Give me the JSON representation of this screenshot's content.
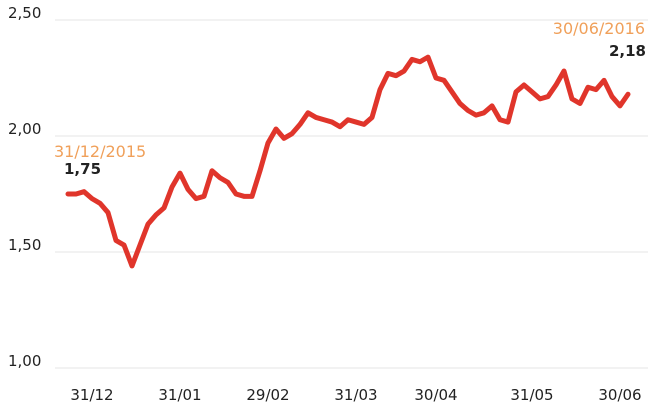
{
  "chart_data": {
    "type": "line",
    "categories": [
      null,
      null,
      null,
      "31/12",
      null,
      null,
      null,
      null,
      null,
      null,
      null,
      null,
      null,
      null,
      "31/01",
      null,
      null,
      null,
      null,
      null,
      null,
      null,
      null,
      null,
      null,
      "29/02",
      null,
      null,
      null,
      null,
      null,
      null,
      null,
      null,
      null,
      null,
      "31/03",
      null,
      null,
      null,
      null,
      null,
      null,
      null,
      null,
      null,
      "30/04",
      null,
      null,
      null,
      null,
      null,
      null,
      null,
      null,
      null,
      null,
      null,
      "31/05",
      null,
      null,
      null,
      null,
      null,
      null,
      null,
      null,
      null,
      null,
      "30/06",
      null
    ],
    "series": [
      {
        "color": "#e0352b",
        "values": [
          1.75,
          1.75,
          1.76,
          1.73,
          1.71,
          1.67,
          1.55,
          1.53,
          1.44,
          1.53,
          1.62,
          1.66,
          1.69,
          1.78,
          1.84,
          1.77,
          1.73,
          1.74,
          1.85,
          1.82,
          1.8,
          1.75,
          1.74,
          1.74,
          1.85,
          1.97,
          2.03,
          1.99,
          2.01,
          2.05,
          2.1,
          2.08,
          2.07,
          2.06,
          2.04,
          2.07,
          2.06,
          2.05,
          2.08,
          2.2,
          2.27,
          2.26,
          2.28,
          2.33,
          2.32,
          2.34,
          2.25,
          2.24,
          2.19,
          2.14,
          2.11,
          2.09,
          2.1,
          2.13,
          2.07,
          2.06,
          2.19,
          2.22,
          2.19,
          2.16,
          2.17,
          2.22,
          2.28,
          2.16,
          2.14,
          2.21,
          2.2,
          2.24,
          2.17,
          2.13,
          2.18
        ],
        "value_labels": [
          "1,75",
          null,
          null,
          null,
          null,
          null,
          null,
          null,
          null,
          null,
          null,
          null,
          null,
          null,
          null,
          null,
          null,
          null,
          null,
          null,
          null,
          null,
          null,
          null,
          null,
          null,
          null,
          null,
          null,
          null,
          null,
          null,
          null,
          null,
          null,
          null,
          null,
          null,
          null,
          null,
          null,
          null,
          null,
          null,
          null,
          null,
          null,
          null,
          null,
          null,
          null,
          null,
          null,
          null,
          null,
          null,
          null,
          null,
          null,
          null,
          null,
          null,
          null,
          null,
          null,
          null,
          null,
          null,
          null,
          null,
          "2,18"
        ]
      }
    ],
    "annotations": [
      "31/12/2015",
      "30/06/2016"
    ],
    "annotation_color": "#f0a05a",
    "ylim": [
      1.0,
      2.5
    ],
    "yticks": [
      {
        "value": 1.0,
        "label": "1,00"
      },
      {
        "value": 1.5,
        "label": "1,50"
      },
      {
        "value": 2.0,
        "label": "2,00"
      },
      {
        "value": 2.5,
        "label": "2,50"
      }
    ],
    "grid": true
  }
}
